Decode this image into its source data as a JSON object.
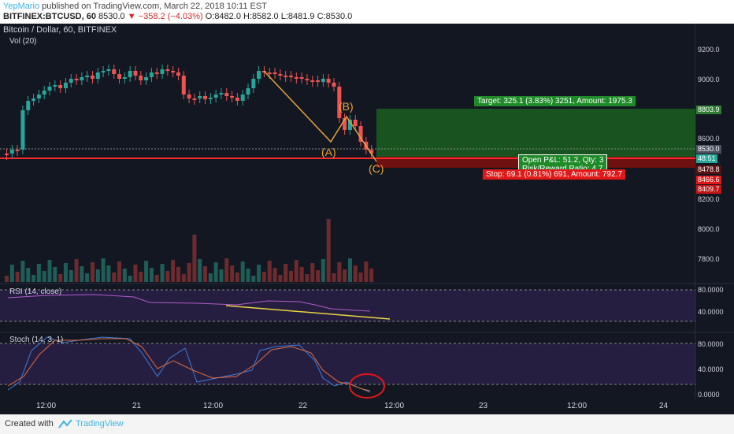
{
  "header": {
    "author": "YepMario",
    "published": " published on TradingView.com, March 22, 2018 10:11 EST",
    "symbol": "BITFINEX:BTCUSD, 60",
    "last": "8530.0",
    "change": "▼ −358.2 (−4.03%)",
    "ohlc": "O:8482.0 H:8582.0 L:8481.9 C:8530.0"
  },
  "pane_labels": {
    "price": "Bitcoin / Dollar, 60, BITFINEX",
    "vol": "Vol (20)",
    "rsi": "RSI (14, close)",
    "stoch": "Stoch (14, 3, 1)"
  },
  "price_axis": [
    "9200.0",
    "9000.0",
    "8600.0",
    "8200.0",
    "8000.0",
    "7800.0"
  ],
  "price_tags": {
    "target": "8803.9",
    "last": "8530.0",
    "countdown": "48:51",
    "entry": "8478.8",
    "red1": "8466.6",
    "stop": "8409.7"
  },
  "rsi_axis": [
    "80.0000",
    "40.0000"
  ],
  "stoch_axis": [
    "80.0000",
    "40.0000",
    "0.0000"
  ],
  "time_axis": [
    "12:00",
    "21",
    "12:00",
    "22",
    "12:00",
    "23",
    "12:00",
    "24"
  ],
  "position": {
    "target_label": "Target: 325.1 (3.83%) 3251, Amount: 1975.3",
    "open_pl": "Open P&L: 51.2, Qty: 3",
    "rr": "Risk/Reward Ratio: 4.7",
    "stop_label": "Stop: 69.1 (0.81%) 691, Amount: 792.7"
  },
  "waves": {
    "a": "(A)",
    "b": "(B)",
    "c": "(C)"
  },
  "footer": {
    "created": "Created with",
    "brand": "TradingView"
  },
  "colors": {
    "bg": "#131722",
    "up": "#26a69a",
    "down": "#ef5350",
    "target": "#1b5e20",
    "stop": "#7a1010",
    "accent": "#3bb3e4",
    "wave": "#e9a23b"
  }
}
